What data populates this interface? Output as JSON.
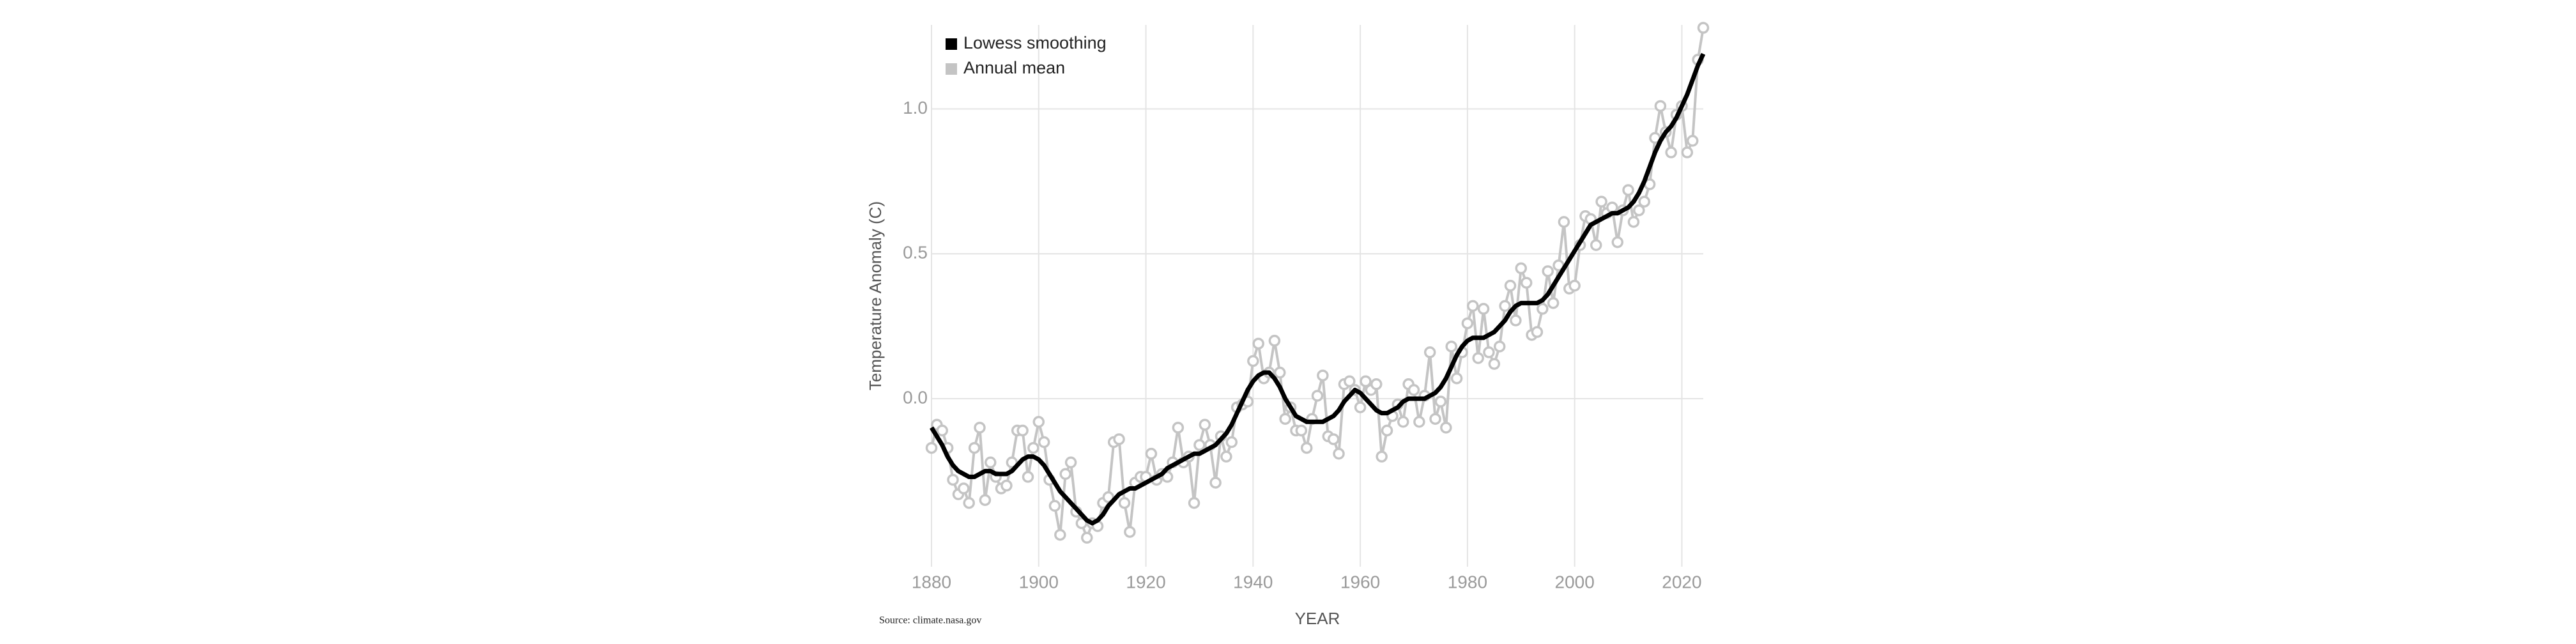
{
  "chart_data": {
    "type": "line",
    "x_label": "YEAR",
    "y_label": "Temperature Anomaly (C)",
    "source": "Source: climate.nasa.gov",
    "x": [
      1880,
      1881,
      1882,
      1883,
      1884,
      1885,
      1886,
      1887,
      1888,
      1889,
      1890,
      1891,
      1892,
      1893,
      1894,
      1895,
      1896,
      1897,
      1898,
      1899,
      1900,
      1901,
      1902,
      1903,
      1904,
      1905,
      1906,
      1907,
      1908,
      1909,
      1910,
      1911,
      1912,
      1913,
      1914,
      1915,
      1916,
      1917,
      1918,
      1919,
      1920,
      1921,
      1922,
      1923,
      1924,
      1925,
      1926,
      1927,
      1928,
      1929,
      1930,
      1931,
      1932,
      1933,
      1934,
      1935,
      1936,
      1937,
      1938,
      1939,
      1940,
      1941,
      1942,
      1943,
      1944,
      1945,
      1946,
      1947,
      1948,
      1949,
      1950,
      1951,
      1952,
      1953,
      1954,
      1955,
      1956,
      1957,
      1958,
      1959,
      1960,
      1961,
      1962,
      1963,
      1964,
      1965,
      1966,
      1967,
      1968,
      1969,
      1970,
      1971,
      1972,
      1973,
      1974,
      1975,
      1976,
      1977,
      1978,
      1979,
      1980,
      1981,
      1982,
      1983,
      1984,
      1985,
      1986,
      1987,
      1988,
      1989,
      1990,
      1991,
      1992,
      1993,
      1994,
      1995,
      1996,
      1997,
      1998,
      1999,
      2000,
      2001,
      2002,
      2003,
      2004,
      2005,
      2006,
      2007,
      2008,
      2009,
      2010,
      2011,
      2012,
      2013,
      2014,
      2015,
      2016,
      2017,
      2018,
      2019,
      2020,
      2021,
      2022,
      2023,
      2024
    ],
    "series": [
      {
        "name": "Annual mean",
        "color": "#c4c4c4",
        "markers": true,
        "values": [
          -0.17,
          -0.09,
          -0.11,
          -0.17,
          -0.28,
          -0.33,
          -0.31,
          -0.36,
          -0.17,
          -0.1,
          -0.35,
          -0.22,
          -0.27,
          -0.31,
          -0.3,
          -0.22,
          -0.11,
          -0.11,
          -0.27,
          -0.17,
          -0.08,
          -0.15,
          -0.28,
          -0.37,
          -0.47,
          -0.26,
          -0.22,
          -0.39,
          -0.43,
          -0.48,
          -0.43,
          -0.44,
          -0.36,
          -0.34,
          -0.15,
          -0.14,
          -0.36,
          -0.46,
          -0.29,
          -0.27,
          -0.27,
          -0.19,
          -0.28,
          -0.26,
          -0.27,
          -0.22,
          -0.1,
          -0.22,
          -0.2,
          -0.36,
          -0.16,
          -0.09,
          -0.16,
          -0.29,
          -0.13,
          -0.2,
          -0.15,
          -0.03,
          -0.02,
          -0.01,
          0.13,
          0.19,
          0.07,
          0.09,
          0.2,
          0.09,
          -0.07,
          -0.03,
          -0.11,
          -0.11,
          -0.17,
          -0.07,
          0.01,
          0.08,
          -0.13,
          -0.14,
          -0.19,
          0.05,
          0.06,
          0.03,
          -0.03,
          0.06,
          0.03,
          0.05,
          -0.2,
          -0.11,
          -0.06,
          -0.02,
          -0.08,
          0.05,
          0.03,
          -0.08,
          0.01,
          0.16,
          -0.07,
          -0.01,
          -0.1,
          0.18,
          0.07,
          0.16,
          0.26,
          0.32,
          0.14,
          0.31,
          0.16,
          0.12,
          0.18,
          0.32,
          0.39,
          0.27,
          0.45,
          0.4,
          0.22,
          0.23,
          0.31,
          0.44,
          0.33,
          0.46,
          0.61,
          0.38,
          0.39,
          0.53,
          0.63,
          0.62,
          0.53,
          0.68,
          0.64,
          0.66,
          0.54,
          0.65,
          0.72,
          0.61,
          0.65,
          0.68,
          0.74,
          0.9,
          1.01,
          0.92,
          0.85,
          0.98,
          1.01,
          0.85,
          0.89,
          1.17,
          1.28
        ]
      },
      {
        "name": "Lowess smoothing",
        "color": "#000000",
        "markers": false,
        "values": [
          -0.1,
          -0.13,
          -0.16,
          -0.2,
          -0.23,
          -0.25,
          -0.26,
          -0.27,
          -0.27,
          -0.26,
          -0.25,
          -0.25,
          -0.26,
          -0.26,
          -0.26,
          -0.25,
          -0.23,
          -0.21,
          -0.2,
          -0.2,
          -0.21,
          -0.23,
          -0.26,
          -0.29,
          -0.32,
          -0.34,
          -0.36,
          -0.38,
          -0.4,
          -0.42,
          -0.43,
          -0.42,
          -0.4,
          -0.37,
          -0.35,
          -0.33,
          -0.32,
          -0.31,
          -0.31,
          -0.3,
          -0.29,
          -0.28,
          -0.27,
          -0.26,
          -0.24,
          -0.23,
          -0.22,
          -0.21,
          -0.2,
          -0.19,
          -0.19,
          -0.18,
          -0.17,
          -0.16,
          -0.14,
          -0.12,
          -0.09,
          -0.05,
          -0.01,
          0.03,
          0.06,
          0.08,
          0.09,
          0.09,
          0.07,
          0.04,
          0.0,
          -0.03,
          -0.06,
          -0.07,
          -0.08,
          -0.08,
          -0.08,
          -0.08,
          -0.07,
          -0.06,
          -0.04,
          -0.01,
          0.01,
          0.03,
          0.02,
          0.0,
          -0.02,
          -0.04,
          -0.05,
          -0.05,
          -0.04,
          -0.03,
          -0.01,
          0.0,
          0.0,
          0.0,
          0.0,
          0.01,
          0.02,
          0.04,
          0.07,
          0.11,
          0.15,
          0.18,
          0.2,
          0.21,
          0.21,
          0.21,
          0.22,
          0.23,
          0.25,
          0.27,
          0.3,
          0.32,
          0.33,
          0.33,
          0.33,
          0.33,
          0.34,
          0.36,
          0.39,
          0.42,
          0.45,
          0.48,
          0.51,
          0.54,
          0.57,
          0.6,
          0.61,
          0.62,
          0.63,
          0.64,
          0.64,
          0.65,
          0.66,
          0.68,
          0.71,
          0.75,
          0.8,
          0.85,
          0.89,
          0.92,
          0.94,
          0.97,
          1.01,
          1.05,
          1.1,
          1.15,
          1.19
        ]
      }
    ],
    "legend_order": [
      1,
      0
    ],
    "xlim": [
      1880,
      2024
    ],
    "xticks": [
      1880,
      1900,
      1920,
      1940,
      1960,
      1980,
      2000,
      2020
    ],
    "ylim": [
      -0.58,
      1.29
    ],
    "yticks": [
      {
        "value": 0,
        "label": "0.0"
      },
      {
        "value": 0.5,
        "label": "0.5"
      },
      {
        "value": 1,
        "label": "1.0"
      }
    ],
    "grid": true,
    "legend_position": "upper-left"
  }
}
